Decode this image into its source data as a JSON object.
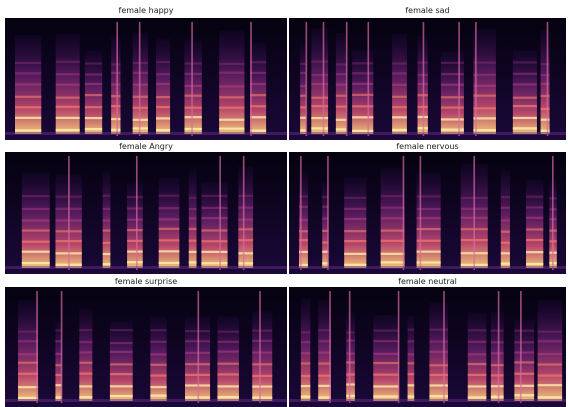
{
  "panels": [
    {
      "title": "female happy"
    },
    {
      "title": "female sad"
    },
    {
      "title": "female Angry"
    },
    {
      "title": "female nervous"
    },
    {
      "title": "female surprise"
    },
    {
      "title": "female neutral"
    }
  ]
}
